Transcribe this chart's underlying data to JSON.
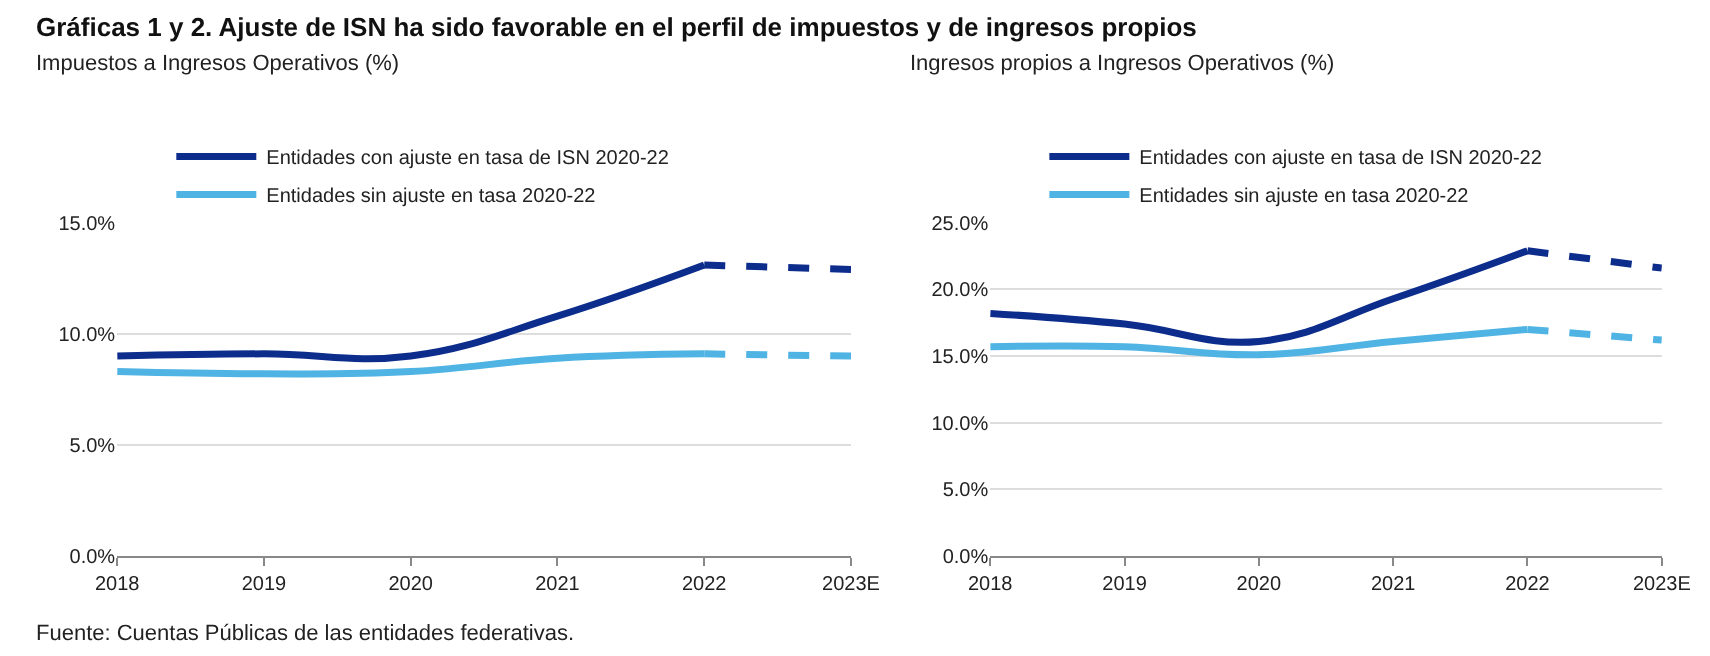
{
  "chart_data": [
    {
      "type": "line",
      "title": "Gráficas 1 y 2. Ajuste de ISN ha sido favorable en el perfil de impuestos y de ingresos propios",
      "ylabel": "Impuestos a Ingresos Operativos (%)",
      "categories": [
        "2018",
        "2019",
        "2020",
        "2021",
        "2022",
        "2023E"
      ],
      "series": [
        {
          "name": "Entidades con ajuste en tasa de ISN 2020-22",
          "color": "#0d2d8c",
          "values": [
            9.0,
            9.1,
            9.0,
            10.8,
            13.1,
            null
          ],
          "line_style": "solid"
        },
        {
          "name": "Entidades sin ajuste en tasa 2020-22",
          "color": "#4fb3e3",
          "values": [
            8.3,
            8.2,
            8.3,
            8.9,
            9.1,
            null
          ],
          "line_style": "solid"
        },
        {
          "color": "#0d2d8c",
          "values": [
            null,
            null,
            null,
            null,
            13.1,
            12.9
          ],
          "line_style": "dashed"
        },
        {
          "color": "#4fb3e3",
          "values": [
            null,
            null,
            null,
            null,
            9.1,
            9.0
          ],
          "line_style": "dashed"
        }
      ],
      "ylim": [
        0,
        15
      ],
      "yticks": [
        {
          "value": 0,
          "label": "0.0%"
        },
        {
          "value": 5,
          "label": "5.0%"
        },
        {
          "value": 10,
          "label": "10.0%"
        },
        {
          "value": 15,
          "label": "15.0%"
        }
      ],
      "grid": "y",
      "legend": "top left",
      "marker": "none",
      "annotations": [
        "Fuente: Cuentas Públicas de las entidades federativas."
      ]
    },
    {
      "type": "line",
      "ylabel": "Ingresos propios a Ingresos Operativos (%)",
      "categories": [
        "2018",
        "2019",
        "2020",
        "2021",
        "2022",
        "2023E"
      ],
      "series": [
        {
          "name": "Entidades con ajuste en tasa de ISN 2020-22",
          "color": "#0d2d8c",
          "values": [
            18.2,
            17.4,
            16.1,
            19.3,
            22.9,
            null
          ],
          "line_style": "solid"
        },
        {
          "name": "Entidades sin ajuste en tasa 2020-22",
          "color": "#4fb3e3",
          "values": [
            15.7,
            15.7,
            15.1,
            16.1,
            17.0,
            null
          ],
          "line_style": "solid"
        },
        {
          "color": "#0d2d8c",
          "values": [
            null,
            null,
            null,
            null,
            22.9,
            21.6
          ],
          "line_style": "dashed"
        },
        {
          "color": "#4fb3e3",
          "values": [
            null,
            null,
            null,
            null,
            17.0,
            16.2
          ],
          "line_style": "dashed"
        }
      ],
      "ylim": [
        0,
        25
      ],
      "yticks": [
        {
          "value": 0,
          "label": "0.0%"
        },
        {
          "value": 5,
          "label": "5.0%"
        },
        {
          "value": 10,
          "label": "10.0%"
        },
        {
          "value": 15,
          "label": "15.0%"
        },
        {
          "value": 20,
          "label": "20.0%"
        },
        {
          "value": 25,
          "label": "25.0%"
        }
      ],
      "grid": "y",
      "legend": "top left",
      "marker": "none"
    }
  ]
}
